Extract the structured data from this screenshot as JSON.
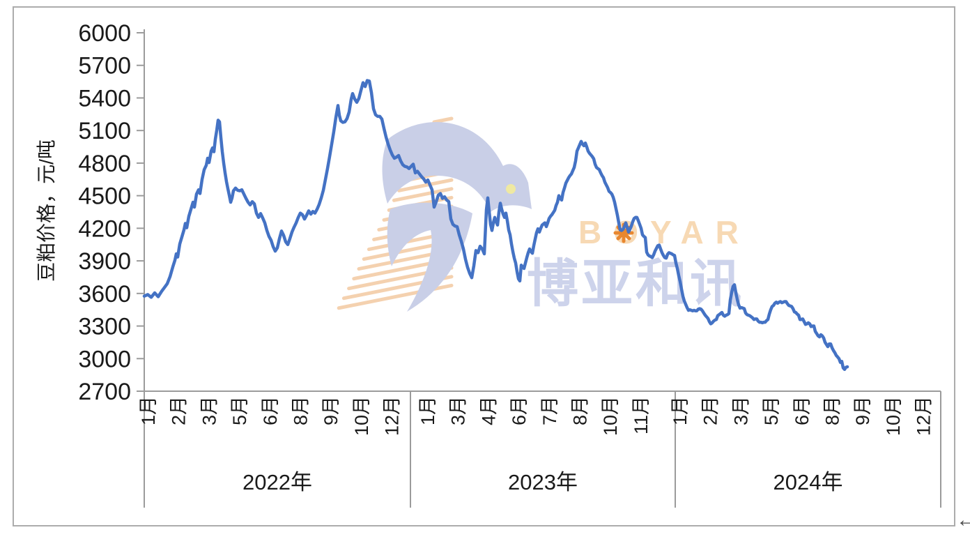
{
  "watermark": {
    "brand_en": "BOYAR",
    "brand_cn": "博亚和讯"
  },
  "cursor_arrow": "←",
  "chart_data": {
    "type": "line",
    "title": "",
    "ylabel": "豆粕价格，元/吨",
    "series_name": "豆粕价格",
    "unit": "元/吨",
    "ylim": [
      2700,
      6000
    ],
    "y_tick_step": 300,
    "y_ticks": [
      6000,
      5700,
      5400,
      5100,
      4800,
      4500,
      4200,
      3900,
      3600,
      3300,
      3000,
      2700
    ],
    "grid": "off",
    "legend": "none",
    "line_color": "#4472C4",
    "x_axis_note": "daily spot price series; x units 0-1143 span Jan 2022 - Dec 2024, data ends late Aug 2024",
    "x_groups": [
      {
        "year": "2022年",
        "months": [
          "1月",
          "2月",
          "3月",
          "5月",
          "6月",
          "8月",
          "9月",
          "10月",
          "12月"
        ]
      },
      {
        "year": "2023年",
        "months": [
          "1月",
          "3月",
          "4月",
          "6月",
          "7月",
          "8月",
          "10月",
          "11月"
        ]
      },
      {
        "year": "2024年",
        "months": [
          "1月",
          "2月",
          "3月",
          "5月",
          "6月",
          "8月",
          "9月",
          "10月",
          "12月"
        ]
      }
    ],
    "points": [
      [
        0,
        3575
      ],
      [
        5,
        3590
      ],
      [
        10,
        3565
      ],
      [
        15,
        3605
      ],
      [
        20,
        3570
      ],
      [
        25,
        3620
      ],
      [
        29,
        3655
      ],
      [
        33,
        3690
      ],
      [
        37,
        3755
      ],
      [
        41,
        3845
      ],
      [
        44,
        3905
      ],
      [
        46,
        3965
      ],
      [
        48,
        3935
      ],
      [
        51,
        4055
      ],
      [
        54,
        4120
      ],
      [
        57,
        4185
      ],
      [
        59,
        4245
      ],
      [
        61,
        4205
      ],
      [
        64,
        4310
      ],
      [
        67,
        4375
      ],
      [
        70,
        4440
      ],
      [
        72,
        4395
      ],
      [
        75,
        4515
      ],
      [
        78,
        4555
      ],
      [
        80,
        4520
      ],
      [
        83,
        4650
      ],
      [
        86,
        4740
      ],
      [
        89,
        4780
      ],
      [
        91,
        4845
      ],
      [
        93,
        4805
      ],
      [
        96,
        4910
      ],
      [
        98,
        4940
      ],
      [
        100,
        4905
      ],
      [
        102,
        5020
      ],
      [
        104,
        5100
      ],
      [
        106,
        5195
      ],
      [
        108,
        5180
      ],
      [
        110,
        5035
      ],
      [
        112,
        4905
      ],
      [
        114,
        4800
      ],
      [
        116,
        4710
      ],
      [
        118,
        4630
      ],
      [
        120,
        4565
      ],
      [
        122,
        4505
      ],
      [
        124,
        4440
      ],
      [
        126,
        4480
      ],
      [
        128,
        4545
      ],
      [
        131,
        4570
      ],
      [
        134,
        4550
      ],
      [
        137,
        4545
      ],
      [
        140,
        4555
      ],
      [
        143,
        4515
      ],
      [
        146,
        4475
      ],
      [
        149,
        4440
      ],
      [
        152,
        4415
      ],
      [
        155,
        4445
      ],
      [
        158,
        4425
      ],
      [
        161,
        4340
      ],
      [
        164,
        4300
      ],
      [
        167,
        4335
      ],
      [
        170,
        4295
      ],
      [
        173,
        4250
      ],
      [
        176,
        4180
      ],
      [
        179,
        4125
      ],
      [
        182,
        4090
      ],
      [
        185,
        4030
      ],
      [
        188,
        3990
      ],
      [
        191,
        4020
      ],
      [
        194,
        4105
      ],
      [
        197,
        4175
      ],
      [
        200,
        4135
      ],
      [
        203,
        4075
      ],
      [
        206,
        4050
      ],
      [
        209,
        4105
      ],
      [
        212,
        4165
      ],
      [
        215,
        4210
      ],
      [
        218,
        4250
      ],
      [
        221,
        4300
      ],
      [
        224,
        4340
      ],
      [
        227,
        4325
      ],
      [
        230,
        4285
      ],
      [
        233,
        4320
      ],
      [
        236,
        4360
      ],
      [
        239,
        4330
      ],
      [
        242,
        4355
      ],
      [
        245,
        4340
      ],
      [
        248,
        4375
      ],
      [
        251,
        4420
      ],
      [
        254,
        4480
      ],
      [
        257,
        4550
      ],
      [
        260,
        4650
      ],
      [
        263,
        4750
      ],
      [
        266,
        4860
      ],
      [
        269,
        4975
      ],
      [
        272,
        5090
      ],
      [
        275,
        5220
      ],
      [
        278,
        5330
      ],
      [
        280,
        5240
      ],
      [
        282,
        5190
      ],
      [
        285,
        5175
      ],
      [
        288,
        5180
      ],
      [
        291,
        5210
      ],
      [
        294,
        5270
      ],
      [
        297,
        5390
      ],
      [
        299,
        5440
      ],
      [
        302,
        5390
      ],
      [
        305,
        5360
      ],
      [
        308,
        5395
      ],
      [
        311,
        5470
      ],
      [
        314,
        5540
      ],
      [
        317,
        5505
      ],
      [
        320,
        5560
      ],
      [
        323,
        5555
      ],
      [
        326,
        5450
      ],
      [
        329,
        5300
      ],
      [
        332,
        5245
      ],
      [
        335,
        5230
      ],
      [
        338,
        5230
      ],
      [
        341,
        5205
      ],
      [
        344,
        5120
      ],
      [
        347,
        5040
      ],
      [
        350,
        4975
      ],
      [
        353,
        4920
      ],
      [
        356,
        4875
      ],
      [
        359,
        4845
      ],
      [
        362,
        4855
      ],
      [
        365,
        4870
      ],
      [
        368,
        4820
      ],
      [
        371,
        4785
      ],
      [
        374,
        4770
      ],
      [
        377,
        4765
      ],
      [
        380,
        4750
      ],
      [
        383,
        4770
      ],
      [
        386,
        4790
      ],
      [
        389,
        4710
      ],
      [
        392,
        4725
      ],
      [
        395,
        4700
      ],
      [
        398,
        4675
      ],
      [
        401,
        4655
      ],
      [
        404,
        4625
      ],
      [
        407,
        4645
      ],
      [
        410,
        4600
      ],
      [
        413,
        4555
      ],
      [
        416,
        4395
      ],
      [
        419,
        4445
      ],
      [
        422,
        4505
      ],
      [
        425,
        4520
      ],
      [
        428,
        4475
      ],
      [
        431,
        4490
      ],
      [
        434,
        4460
      ],
      [
        437,
        4445
      ],
      [
        440,
        4285
      ],
      [
        443,
        4235
      ],
      [
        446,
        4220
      ],
      [
        449,
        4215
      ],
      [
        452,
        4140
      ],
      [
        455,
        4080
      ],
      [
        458,
        4010
      ],
      [
        461,
        3915
      ],
      [
        464,
        3840
      ],
      [
        467,
        3785
      ],
      [
        470,
        3745
      ],
      [
        473,
        3855
      ],
      [
        476,
        3995
      ],
      [
        479,
        3975
      ],
      [
        482,
        4035
      ],
      [
        485,
        4010
      ],
      [
        488,
        3965
      ],
      [
        491,
        4370
      ],
      [
        493,
        4480
      ],
      [
        495,
        4355
      ],
      [
        497,
        4235
      ],
      [
        499,
        4180
      ],
      [
        501,
        4250
      ],
      [
        503,
        4300
      ],
      [
        505,
        4260
      ],
      [
        507,
        4230
      ],
      [
        509,
        4350
      ],
      [
        511,
        4430
      ],
      [
        513,
        4375
      ],
      [
        515,
        4330
      ],
      [
        517,
        4300
      ],
      [
        519,
        4340
      ],
      [
        521,
        4270
      ],
      [
        523,
        4185
      ],
      [
        525,
        4140
      ],
      [
        527,
        4055
      ],
      [
        529,
        3985
      ],
      [
        531,
        3925
      ],
      [
        533,
        3880
      ],
      [
        535,
        3800
      ],
      [
        537,
        3735
      ],
      [
        539,
        3715
      ],
      [
        541,
        3860
      ],
      [
        543,
        3845
      ],
      [
        545,
        3830
      ],
      [
        547,
        3880
      ],
      [
        549,
        3930
      ],
      [
        551,
        3975
      ],
      [
        553,
        4010
      ],
      [
        555,
        3985
      ],
      [
        557,
        3970
      ],
      [
        559,
        4040
      ],
      [
        561,
        4100
      ],
      [
        563,
        4160
      ],
      [
        565,
        4195
      ],
      [
        567,
        4165
      ],
      [
        569,
        4200
      ],
      [
        571,
        4230
      ],
      [
        573,
        4240
      ],
      [
        575,
        4250
      ],
      [
        577,
        4215
      ],
      [
        579,
        4250
      ],
      [
        581,
        4290
      ],
      [
        583,
        4310
      ],
      [
        585,
        4325
      ],
      [
        587,
        4345
      ],
      [
        589,
        4365
      ],
      [
        591,
        4410
      ],
      [
        593,
        4440
      ],
      [
        595,
        4500
      ],
      [
        597,
        4475
      ],
      [
        599,
        4460
      ],
      [
        601,
        4530
      ],
      [
        603,
        4570
      ],
      [
        605,
        4615
      ],
      [
        607,
        4640
      ],
      [
        609,
        4665
      ],
      [
        611,
        4685
      ],
      [
        613,
        4700
      ],
      [
        615,
        4730
      ],
      [
        617,
        4760
      ],
      [
        619,
        4820
      ],
      [
        621,
        4910
      ],
      [
        623,
        4940
      ],
      [
        625,
        4970
      ],
      [
        627,
        5000
      ],
      [
        629,
        4975
      ],
      [
        631,
        4960
      ],
      [
        633,
        4985
      ],
      [
        635,
        4950
      ],
      [
        637,
        4910
      ],
      [
        639,
        4890
      ],
      [
        641,
        4875
      ],
      [
        643,
        4860
      ],
      [
        645,
        4840
      ],
      [
        647,
        4790
      ],
      [
        649,
        4760
      ],
      [
        651,
        4750
      ],
      [
        653,
        4740
      ],
      [
        655,
        4710
      ],
      [
        657,
        4685
      ],
      [
        659,
        4665
      ],
      [
        661,
        4625
      ],
      [
        663,
        4600
      ],
      [
        665,
        4575
      ],
      [
        667,
        4540
      ],
      [
        669,
        4530
      ],
      [
        671,
        4515
      ],
      [
        673,
        4485
      ],
      [
        675,
        4440
      ],
      [
        677,
        4380
      ],
      [
        679,
        4320
      ],
      [
        681,
        4250
      ],
      [
        683,
        4185
      ],
      [
        685,
        4180
      ],
      [
        687,
        4190
      ],
      [
        689,
        4215
      ],
      [
        691,
        4250
      ],
      [
        693,
        4210
      ],
      [
        695,
        4165
      ],
      [
        697,
        4190
      ],
      [
        699,
        4220
      ],
      [
        701,
        4260
      ],
      [
        703,
        4290
      ],
      [
        705,
        4300
      ],
      [
        707,
        4300
      ],
      [
        709,
        4270
      ],
      [
        711,
        4235
      ],
      [
        713,
        4200
      ],
      [
        715,
        4140
      ],
      [
        717,
        4125
      ],
      [
        719,
        4115
      ],
      [
        721,
        3980
      ],
      [
        723,
        3955
      ],
      [
        725,
        3945
      ],
      [
        727,
        3940
      ],
      [
        729,
        3930
      ],
      [
        731,
        3955
      ],
      [
        733,
        3990
      ],
      [
        735,
        4015
      ],
      [
        737,
        4040
      ],
      [
        739,
        4045
      ],
      [
        741,
        4010
      ],
      [
        743,
        3975
      ],
      [
        745,
        3950
      ],
      [
        747,
        3930
      ],
      [
        749,
        3925
      ],
      [
        751,
        3960
      ],
      [
        753,
        3975
      ],
      [
        755,
        3970
      ],
      [
        757,
        3965
      ],
      [
        759,
        3955
      ],
      [
        761,
        3950
      ],
      [
        763,
        3880
      ],
      [
        765,
        3830
      ],
      [
        767,
        3765
      ],
      [
        769,
        3710
      ],
      [
        771,
        3640
      ],
      [
        773,
        3575
      ],
      [
        775,
        3530
      ],
      [
        777,
        3500
      ],
      [
        779,
        3470
      ],
      [
        781,
        3445
      ],
      [
        783,
        3450
      ],
      [
        785,
        3445
      ],
      [
        787,
        3440
      ],
      [
        789,
        3445
      ],
      [
        791,
        3440
      ],
      [
        793,
        3440
      ],
      [
        795,
        3455
      ],
      [
        797,
        3460
      ],
      [
        799,
        3455
      ],
      [
        801,
        3440
      ],
      [
        803,
        3420
      ],
      [
        805,
        3400
      ],
      [
        807,
        3385
      ],
      [
        809,
        3370
      ],
      [
        811,
        3340
      ],
      [
        813,
        3320
      ],
      [
        815,
        3330
      ],
      [
        817,
        3345
      ],
      [
        819,
        3355
      ],
      [
        821,
        3360
      ],
      [
        823,
        3395
      ],
      [
        825,
        3405
      ],
      [
        827,
        3415
      ],
      [
        829,
        3425
      ],
      [
        831,
        3400
      ],
      [
        833,
        3390
      ],
      [
        835,
        3400
      ],
      [
        837,
        3405
      ],
      [
        839,
        3415
      ],
      [
        841,
        3540
      ],
      [
        843,
        3610
      ],
      [
        845,
        3665
      ],
      [
        847,
        3680
      ],
      [
        849,
        3605
      ],
      [
        851,
        3545
      ],
      [
        853,
        3495
      ],
      [
        855,
        3465
      ],
      [
        857,
        3470
      ],
      [
        859,
        3465
      ],
      [
        861,
        3460
      ],
      [
        863,
        3420
      ],
      [
        865,
        3405
      ],
      [
        867,
        3400
      ],
      [
        869,
        3395
      ],
      [
        871,
        3385
      ],
      [
        873,
        3375
      ],
      [
        875,
        3360
      ],
      [
        877,
        3365
      ],
      [
        879,
        3365
      ],
      [
        881,
        3345
      ],
      [
        883,
        3335
      ],
      [
        885,
        3335
      ],
      [
        887,
        3330
      ],
      [
        889,
        3335
      ],
      [
        891,
        3335
      ],
      [
        893,
        3350
      ],
      [
        895,
        3360
      ],
      [
        897,
        3410
      ],
      [
        899,
        3450
      ],
      [
        901,
        3480
      ],
      [
        903,
        3490
      ],
      [
        905,
        3510
      ],
      [
        907,
        3520
      ],
      [
        909,
        3510
      ],
      [
        911,
        3520
      ],
      [
        913,
        3525
      ],
      [
        915,
        3515
      ],
      [
        917,
        3520
      ],
      [
        919,
        3525
      ],
      [
        921,
        3525
      ],
      [
        923,
        3505
      ],
      [
        925,
        3490
      ],
      [
        927,
        3485
      ],
      [
        929,
        3480
      ],
      [
        931,
        3460
      ],
      [
        933,
        3430
      ],
      [
        935,
        3425
      ],
      [
        937,
        3410
      ],
      [
        939,
        3400
      ],
      [
        941,
        3360
      ],
      [
        943,
        3360
      ],
      [
        945,
        3365
      ],
      [
        947,
        3340
      ],
      [
        949,
        3315
      ],
      [
        951,
        3320
      ],
      [
        953,
        3330
      ],
      [
        955,
        3320
      ],
      [
        957,
        3295
      ],
      [
        959,
        3300
      ],
      [
        961,
        3300
      ],
      [
        963,
        3250
      ],
      [
        965,
        3230
      ],
      [
        967,
        3210
      ],
      [
        969,
        3200
      ],
      [
        971,
        3220
      ],
      [
        973,
        3210
      ],
      [
        975,
        3190
      ],
      [
        977,
        3150
      ],
      [
        979,
        3130
      ],
      [
        981,
        3110
      ],
      [
        983,
        3135
      ],
      [
        985,
        3135
      ],
      [
        987,
        3100
      ],
      [
        989,
        3075
      ],
      [
        991,
        3055
      ],
      [
        993,
        3030
      ],
      [
        995,
        3015
      ],
      [
        997,
        3000
      ],
      [
        999,
        2965
      ],
      [
        1001,
        2975
      ],
      [
        1003,
        2915
      ],
      [
        1005,
        2900
      ],
      [
        1007,
        2920
      ],
      [
        1009,
        2925
      ]
    ]
  }
}
